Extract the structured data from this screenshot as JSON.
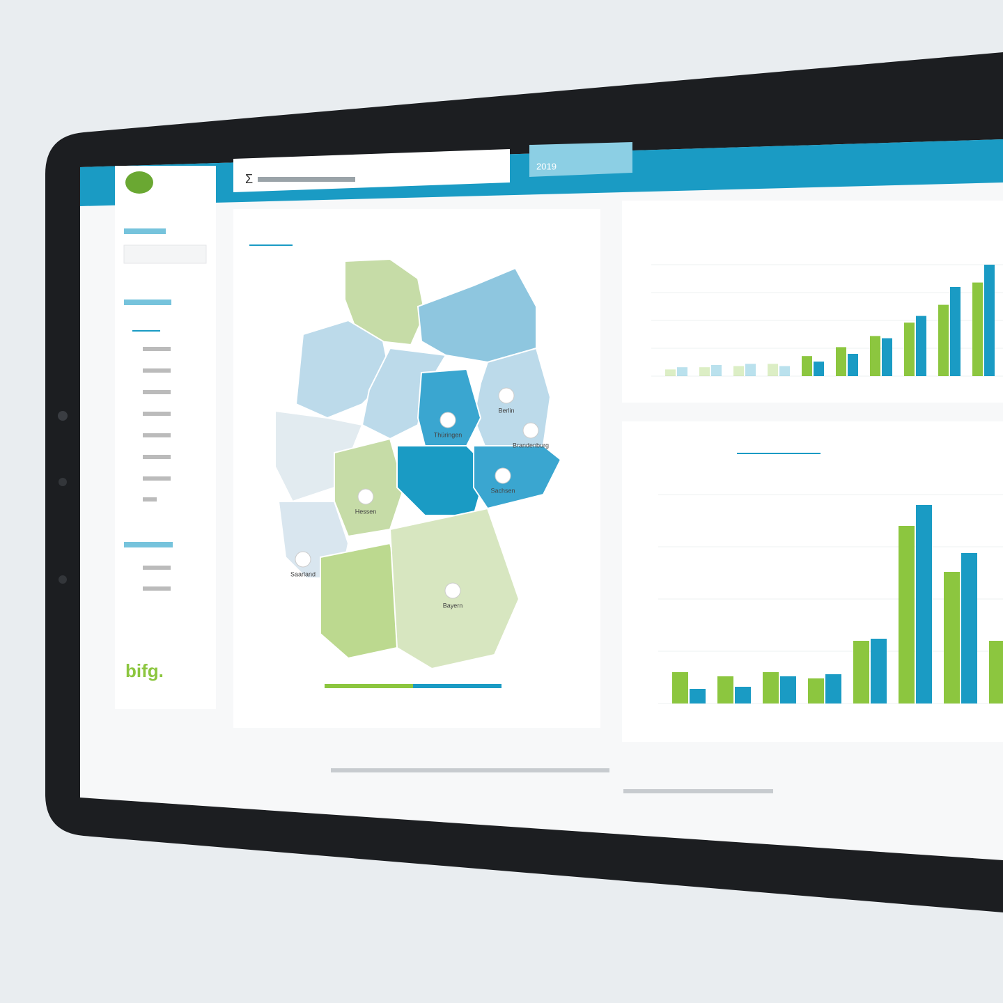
{
  "header": {
    "sigma": "Σ",
    "year": "2019"
  },
  "sidebar": {
    "logo": "bifg."
  },
  "map": {
    "labels": [
      "Berlin",
      "Brandenburg",
      "Sachsen",
      "Thüringen",
      "Hessen",
      "Saarland",
      "Bayern"
    ]
  },
  "chart_data": [
    {
      "type": "bar",
      "ylim": [
        0,
        100
      ],
      "series": [
        {
          "color": "#8cc63f",
          "values": [
            6,
            8,
            9,
            11,
            18,
            26,
            36,
            48,
            64,
            84
          ]
        },
        {
          "color": "#1a9bc4",
          "values": [
            8,
            10,
            11,
            9,
            13,
            20,
            34,
            54,
            80,
            100
          ]
        }
      ]
    },
    {
      "type": "bar",
      "ylim": [
        0,
        100
      ],
      "series": [
        {
          "color": "#8cc63f",
          "values": [
            15,
            13,
            15,
            12,
            30,
            85,
            63,
            30
          ]
        },
        {
          "color": "#1a9bc4",
          "values": [
            7,
            8,
            13,
            14,
            31,
            95,
            72
          ]
        }
      ]
    }
  ]
}
